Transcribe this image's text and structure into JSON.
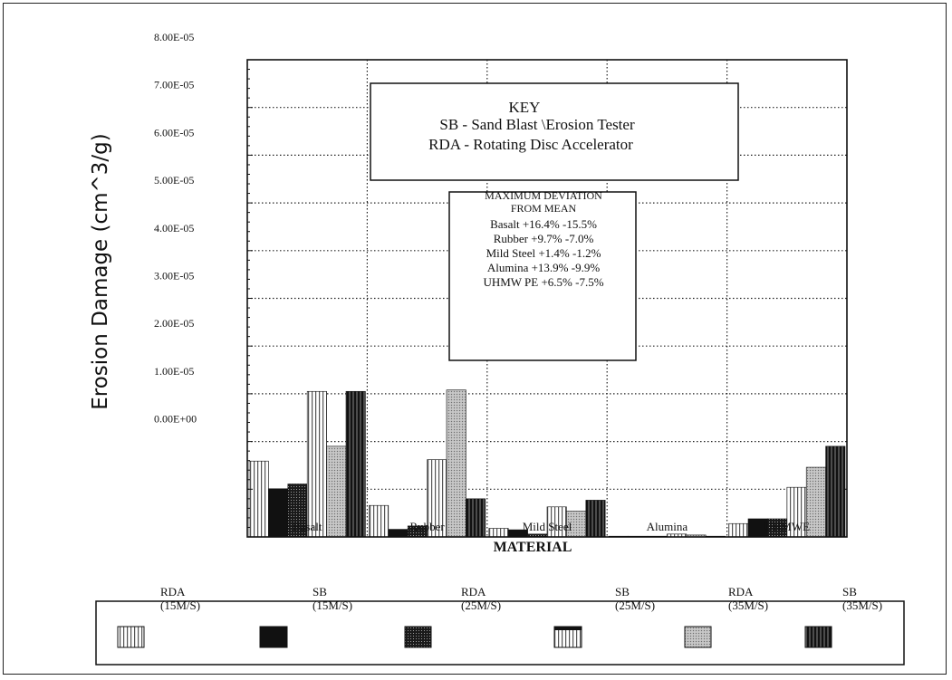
{
  "chart_data": {
    "type": "bar",
    "ylabel": "Erosion Damage (cm^3/g)",
    "xlabel": "MATERIAL",
    "y_tick_labels": [
      "8.00E-05",
      "7.00E-05",
      "6.00E-05",
      "5.00E-05",
      "4.00E-05",
      "3.00E-05",
      "2.00E-05",
      "1.00E-05",
      "0.00E+00"
    ],
    "ylim": [
      -2e-05,
      8e-05
    ],
    "grid": true,
    "categories": [
      "Basalt",
      "Rubber",
      "Mild Steel",
      "Alumina",
      "UHMWE"
    ],
    "category_labels_visible": [
      "Basalt",
      "Rubber",
      "Mild Steel",
      "Alumina",
      "UHMWE"
    ],
    "series": [
      {
        "name": "RDA (15M/S)",
        "values": [
          -4.1e-06,
          -1.34e-05,
          -1.82e-05,
          -2e-05,
          -1.72e-05
        ]
      },
      {
        "name": "SB (15M/S)",
        "values": [
          -9.9e-06,
          -1.84e-05,
          -1.85e-05,
          -2e-05,
          -1.62e-05
        ]
      },
      {
        "name": "RDA (25M/S)",
        "values": [
          -8.9e-06,
          -1.77e-05,
          -1.94e-05,
          -2e-05,
          -1.62e-05
        ]
      },
      {
        "name": "SB (25M/S)",
        "values": [
          1.05e-05,
          -3.8e-06,
          -1.37e-05,
          -1.94e-05,
          -9.6e-06
        ]
      },
      {
        "name": "RDA (35M/S)",
        "values": [
          -1e-06,
          1.08e-05,
          -1.46e-05,
          -1.96e-05,
          -5.4e-06
        ]
      },
      {
        "name": "SB (35M/S)",
        "values": [
          1.05e-05,
          -1.2e-05,
          -1.23e-05,
          -1.99e-05,
          -1e-06
        ]
      }
    ]
  },
  "key_box": {
    "title": "KEY",
    "line1": "SB - Sand Blast \\Erosion Tester",
    "line2": "RDA - Rotating Disc Accelerator"
  },
  "deviation_box": {
    "line1": "MAXIMUM DEVIATION",
    "line2": "FROM MEAN",
    "rows": [
      "Basalt +16.4%  -15.5%",
      "Rubber +9.7%  -7.0%",
      "Mild Steel  +1.4%  -1.2%",
      "Alumina  +13.9%  -9.9%",
      "UHMW PE  +6.5%  -7.5%"
    ]
  },
  "legend": [
    {
      "line1": "RDA",
      "line2": "(15M/S)",
      "swatch": "white-vertical-stripes"
    },
    {
      "line1": "SB",
      "line2": "(15M/S)",
      "swatch": "solid-black"
    },
    {
      "line1": "RDA",
      "line2": "(25M/S)",
      "swatch": "dark-dotted"
    },
    {
      "line1": "SB",
      "line2": "(25M/S)",
      "swatch": "white-vertical-stripes"
    },
    {
      "line1": "RDA",
      "line2": "(35M/S)",
      "swatch": "light-gray-dotted"
    },
    {
      "line1": "SB",
      "line2": "(35M/S)",
      "swatch": "black-with-stripes"
    }
  ]
}
